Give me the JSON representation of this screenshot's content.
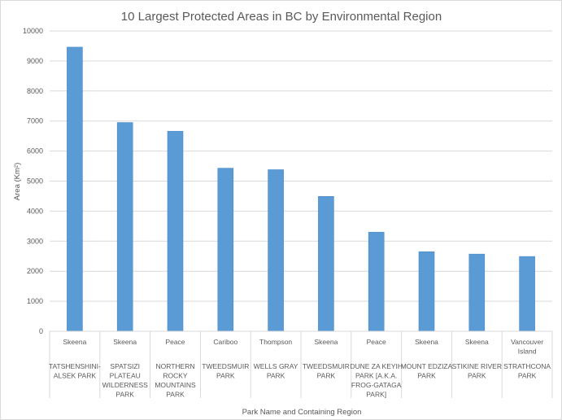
{
  "chart_data": {
    "type": "bar",
    "title": "10 Largest Protected Areas in BC by Environmental Region",
    "xlabel": "Park Name and Containing Region",
    "ylabel": "Area (Km²)",
    "ylim": [
      0,
      10000
    ],
    "yticks": [
      0,
      1000,
      2000,
      3000,
      4000,
      5000,
      6000,
      7000,
      8000,
      9000,
      10000
    ],
    "grid": true,
    "legend": "none",
    "bar_color": "#5b9bd5",
    "categories": [
      {
        "region": "Skeena",
        "park": "TATSHENSHINI-ALSEK PARK",
        "park_lines": [
          "TATSHENSHINI-",
          "ALSEK PARK"
        ],
        "region_lines": [
          "Skeena"
        ]
      },
      {
        "region": "Skeena",
        "park": "SPATSIZI PLATEAU WILDERNESS PARK",
        "park_lines": [
          "SPATSIZI",
          "PLATEAU",
          "WILDERNESS",
          "PARK"
        ],
        "region_lines": [
          "Skeena"
        ]
      },
      {
        "region": "Peace",
        "park": "NORTHERN ROCKY MOUNTAINS PARK",
        "park_lines": [
          "NORTHERN",
          "ROCKY",
          "MOUNTAINS",
          "PARK"
        ],
        "region_lines": [
          "Peace"
        ]
      },
      {
        "region": "Cariboo",
        "park": "TWEEDSMUIR PARK",
        "park_lines": [
          "TWEEDSMUIR",
          "PARK"
        ],
        "region_lines": [
          "Cariboo"
        ]
      },
      {
        "region": "Thompson",
        "park": "WELLS GRAY PARK",
        "park_lines": [
          "WELLS GRAY",
          "PARK"
        ],
        "region_lines": [
          "Thompson"
        ]
      },
      {
        "region": "Skeena",
        "park": "TWEEDSMUIR PARK",
        "park_lines": [
          "TWEEDSMUIR",
          "PARK"
        ],
        "region_lines": [
          "Skeena"
        ]
      },
      {
        "region": "Peace",
        "park": "DUNE ZA KEYIH PARK [A.K.A. FROG-GATAGA PARK]",
        "park_lines": [
          "DUNE ZA KEYIH",
          "PARK [A.K.A.",
          "FROG-GATAGA",
          "PARK]"
        ],
        "region_lines": [
          "Peace"
        ]
      },
      {
        "region": "Skeena",
        "park": "MOUNT EDZIZA PARK",
        "park_lines": [
          "MOUNT EDZIZA",
          "PARK"
        ],
        "region_lines": [
          "Skeena"
        ]
      },
      {
        "region": "Skeena",
        "park": "STIKINE RIVER PARK",
        "park_lines": [
          "STIKINE RIVER",
          "PARK"
        ],
        "region_lines": [
          "Skeena"
        ]
      },
      {
        "region": "Vancouver Island",
        "park": "STRATHCONA PARK",
        "park_lines": [
          "STRATHCONA",
          "PARK"
        ],
        "region_lines": [
          "Vancouver",
          "Island"
        ]
      }
    ],
    "values": [
      9460,
      6950,
      6660,
      5430,
      5380,
      4490,
      3300,
      2650,
      2570,
      2490
    ]
  }
}
